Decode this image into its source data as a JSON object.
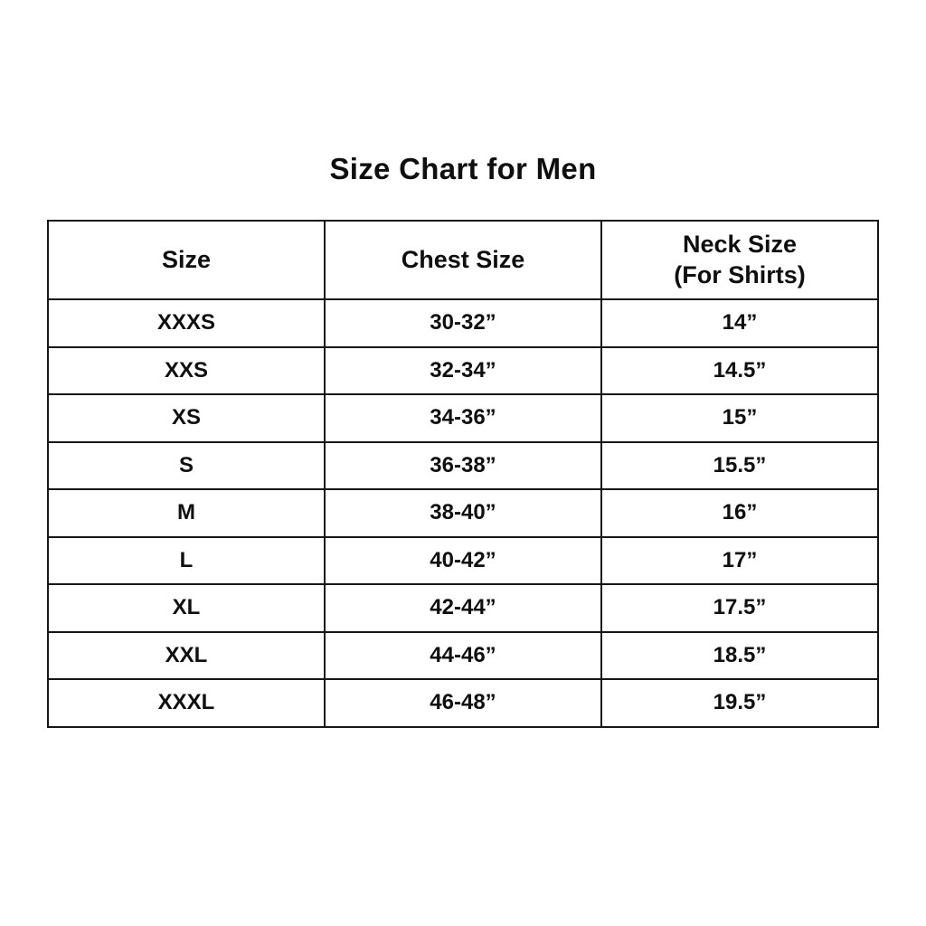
{
  "title": "Size Chart for Men",
  "table": {
    "headers": {
      "size": "Size",
      "chest": "Chest Size",
      "neck_line1": "Neck Size",
      "neck_line2": "(For Shirts)"
    },
    "rows": [
      {
        "size": "XXXS",
        "chest": "30-32”",
        "neck": "14”"
      },
      {
        "size": "XXS",
        "chest": "32-34”",
        "neck": "14.5”"
      },
      {
        "size": "XS",
        "chest": "34-36”",
        "neck": "15”"
      },
      {
        "size": "S",
        "chest": "36-38”",
        "neck": "15.5”"
      },
      {
        "size": "M",
        "chest": "38-40”",
        "neck": "16”"
      },
      {
        "size": "L",
        "chest": "40-42”",
        "neck": "17”"
      },
      {
        "size": "XL",
        "chest": "42-44”",
        "neck": "17.5”"
      },
      {
        "size": "XXL",
        "chest": "44-46”",
        "neck": "18.5”"
      },
      {
        "size": "XXXL",
        "chest": "46-48”",
        "neck": "19.5”"
      }
    ]
  },
  "colors": {
    "background": "#ffffff",
    "text": "#0f0f0f",
    "border": "#161616"
  },
  "chart_data": {
    "type": "table",
    "title": "Size Chart for Men",
    "columns": [
      "Size",
      "Chest Size",
      "Neck Size (For Shirts)"
    ],
    "rows": [
      [
        "XXXS",
        "30-32”",
        "14”"
      ],
      [
        "XXS",
        "32-34”",
        "14.5”"
      ],
      [
        "XS",
        "34-36”",
        "15”"
      ],
      [
        "S",
        "36-38”",
        "15.5”"
      ],
      [
        "M",
        "38-40”",
        "16”"
      ],
      [
        "L",
        "40-42”",
        "17”"
      ],
      [
        "XL",
        "42-44”",
        "17.5”"
      ],
      [
        "XXL",
        "44-46”",
        "18.5”"
      ],
      [
        "XXXL",
        "46-48”",
        "19.5”"
      ]
    ],
    "layout": {
      "grid": true,
      "text_align": "center",
      "header_row": true
    }
  }
}
